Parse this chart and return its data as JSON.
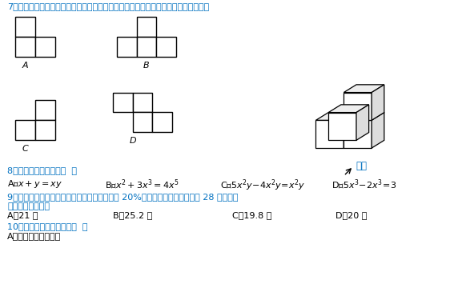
{
  "title_q7": "7、右图是由几个相同的小正方体搭成的一个几何体，从左边看得到的平面图形是（）",
  "title_q8": "8、下列运算正确的是（  ）",
  "title_q9": "9、某商店把一商品按标价的九折出售仍可获利 20%，若该商品的标价为每件 28 元，则该商品的进价为（）",
  "title_q9_line2": "商品的进价为（）",
  "title_q10": "10、下列说法不正确的是（  ）",
  "q10_a": "A、两点确定一条直线",
  "text_color": "#0070C0",
  "black": "#000000",
  "bg_color": "#ffffff",
  "label_A": "A",
  "label_B": "B",
  "label_C": "C",
  "label_D": "D",
  "zhengmian": "正面"
}
